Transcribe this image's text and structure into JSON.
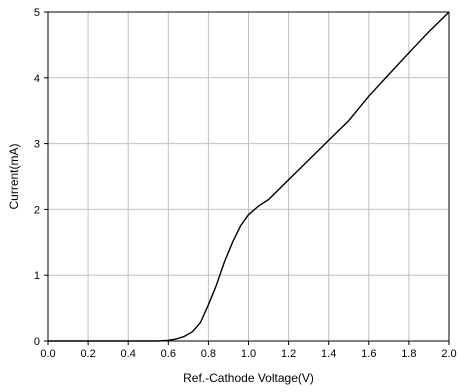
{
  "chart_data": {
    "type": "line",
    "title": "",
    "xlabel": "Ref.-Cathode Voltage(V)",
    "ylabel": "Current(mA)",
    "xlim": [
      0.0,
      2.0
    ],
    "ylim": [
      0,
      5
    ],
    "x_ticks": [
      "0.0",
      "0.2",
      "0.4",
      "0.6",
      "0.8",
      "1.0",
      "1.2",
      "1.4",
      "1.6",
      "1.8",
      "2.0"
    ],
    "y_ticks": [
      "0",
      "1",
      "2",
      "3",
      "4",
      "5"
    ],
    "grid": true,
    "line_color": "#000000",
    "grid_color": "#c0c0c0",
    "series": [
      {
        "x": [
          0.0,
          0.55,
          0.6,
          0.64,
          0.68,
          0.72,
          0.76,
          0.8,
          0.84,
          0.88,
          0.92,
          0.96,
          1.0,
          1.05,
          1.1,
          1.2,
          1.3,
          1.4,
          1.5,
          1.6,
          1.7,
          1.8,
          1.9,
          2.0
        ],
        "y": [
          0.0,
          0.0,
          0.01,
          0.03,
          0.07,
          0.14,
          0.28,
          0.55,
          0.85,
          1.2,
          1.5,
          1.75,
          1.92,
          2.05,
          2.15,
          2.45,
          2.75,
          3.05,
          3.35,
          3.72,
          4.05,
          4.38,
          4.7,
          5.0
        ]
      }
    ]
  }
}
